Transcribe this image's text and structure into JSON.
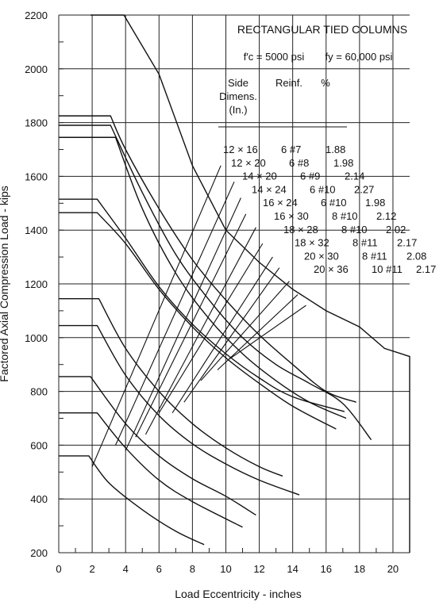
{
  "chart_data": {
    "type": "line",
    "title": "RECTANGULAR TIED COLUMNS",
    "material_fc": "f′c = 5000 psi",
    "material_fy": "fy = 60,000 psi",
    "xlabel": "Load Eccentricity - inches",
    "ylabel": "Factored Axial Compression Load - kips",
    "xlim": [
      0,
      21
    ],
    "ylim": [
      200,
      2200
    ],
    "x_ticks": [
      0,
      2,
      4,
      6,
      8,
      10,
      12,
      14,
      16,
      18,
      20
    ],
    "y_ticks": [
      200,
      400,
      600,
      800,
      1000,
      1200,
      1400,
      1600,
      1800,
      2000,
      2200
    ],
    "grid": true,
    "legend_headers": [
      "Side Dimens. (In.)",
      "Reinf.",
      "%"
    ],
    "legend_rows": [
      {
        "dims": "12 × 16",
        "reinf": "6 #7",
        "pct": "1.88"
      },
      {
        "dims": "12 × 20",
        "reinf": "6 #8",
        "pct": "1.98"
      },
      {
        "dims": "14 × 20",
        "reinf": "6 #9",
        "pct": "2.14"
      },
      {
        "dims": "14 × 24",
        "reinf": "6 #10",
        "pct": "2.27"
      },
      {
        "dims": "16 × 24",
        "reinf": "6 #10",
        "pct": "1.98"
      },
      {
        "dims": "16 × 30",
        "reinf": "8 #10",
        "pct": "2.12"
      },
      {
        "dims": "18 × 28",
        "reinf": "8 #10",
        "pct": "2.02"
      },
      {
        "dims": "18 × 32",
        "reinf": "8 #11",
        "pct": "2.17"
      },
      {
        "dims": "20 × 30",
        "reinf": "8 #11",
        "pct": "2.08"
      },
      {
        "dims": "20 × 36",
        "reinf": "10 #11",
        "pct": "2.17"
      }
    ],
    "series": [
      {
        "points": [
          [
            0,
            560
          ],
          [
            1.8,
            560
          ],
          [
            3,
            460
          ],
          [
            5,
            360
          ],
          [
            7,
            280
          ],
          [
            8.7,
            230
          ]
        ]
      },
      {
        "points": [
          [
            0,
            720
          ],
          [
            2.3,
            720
          ],
          [
            4,
            590
          ],
          [
            6,
            470
          ],
          [
            8,
            390
          ],
          [
            11,
            295
          ]
        ]
      },
      {
        "points": [
          [
            0,
            855
          ],
          [
            1.9,
            855
          ],
          [
            4,
            680
          ],
          [
            6,
            560
          ],
          [
            8,
            475
          ],
          [
            10,
            410
          ],
          [
            11.8,
            340
          ]
        ]
      },
      {
        "points": [
          [
            0,
            1045
          ],
          [
            2.3,
            1045
          ],
          [
            4,
            860
          ],
          [
            6,
            710
          ],
          [
            8,
            605
          ],
          [
            10,
            530
          ],
          [
            12,
            470
          ],
          [
            14.4,
            415
          ]
        ]
      },
      {
        "points": [
          [
            0,
            1145
          ],
          [
            2.4,
            1145
          ],
          [
            4,
            960
          ],
          [
            6,
            800
          ],
          [
            8,
            680
          ],
          [
            10,
            590
          ],
          [
            12,
            520
          ],
          [
            13.4,
            485
          ]
        ]
      },
      {
        "points": [
          [
            0,
            1465
          ],
          [
            2.3,
            1465
          ],
          [
            4,
            1350
          ],
          [
            6,
            1180
          ],
          [
            8,
            1040
          ],
          [
            10,
            925
          ],
          [
            12,
            830
          ],
          [
            14,
            745
          ],
          [
            16.6,
            660
          ]
        ]
      },
      {
        "points": [
          [
            0,
            1515
          ],
          [
            2.3,
            1515
          ],
          [
            4,
            1370
          ],
          [
            6,
            1190
          ],
          [
            8,
            1050
          ],
          [
            10,
            940
          ],
          [
            12,
            850
          ],
          [
            14,
            780
          ],
          [
            17.1,
            725
          ]
        ]
      },
      {
        "points": [
          [
            0,
            1745
          ],
          [
            3.4,
            1745
          ],
          [
            5,
            1480
          ],
          [
            7,
            1240
          ],
          [
            9,
            1070
          ],
          [
            11,
            940
          ],
          [
            13,
            840
          ],
          [
            15,
            760
          ],
          [
            17.2,
            700
          ]
        ]
      },
      {
        "points": [
          [
            0,
            1825
          ],
          [
            3.1,
            1825
          ],
          [
            4,
            1700
          ],
          [
            6,
            1480
          ],
          [
            8,
            1290
          ],
          [
            10,
            1140
          ],
          [
            12,
            1010
          ],
          [
            14,
            900
          ],
          [
            16,
            800
          ],
          [
            17.8,
            760
          ]
        ]
      },
      {
        "points": [
          [
            0,
            1790
          ],
          [
            3.1,
            1790
          ],
          [
            5,
            1540
          ],
          [
            7,
            1310
          ],
          [
            9,
            1140
          ],
          [
            11,
            1000
          ],
          [
            13,
            900
          ],
          [
            15,
            830
          ],
          [
            17,
            755
          ],
          [
            18.7,
            620
          ]
        ]
      }
    ],
    "envelope": [
      [
        3.9,
        2200
      ],
      [
        6,
        1980
      ],
      [
        8,
        1640
      ],
      [
        10,
        1400
      ],
      [
        12,
        1280
      ],
      [
        14,
        1180
      ],
      [
        16,
        1100
      ],
      [
        18,
        1040
      ],
      [
        19.5,
        960
      ],
      [
        21,
        930
      ],
      [
        21,
        200
      ]
    ],
    "leaders": [
      [
        [
          2,
          520
        ],
        [
          9.7,
          1640
        ]
      ],
      [
        [
          3.4,
          600
        ],
        [
          10.5,
          1580
        ]
      ],
      [
        [
          4,
          580
        ],
        [
          10.9,
          1520
        ]
      ],
      [
        [
          4.6,
          630
        ],
        [
          11.2,
          1460
        ]
      ],
      [
        [
          5.2,
          640
        ],
        [
          11.8,
          1410
        ]
      ],
      [
        [
          6,
          720
        ],
        [
          12.2,
          1350
        ]
      ],
      [
        [
          6.8,
          720
        ],
        [
          12.8,
          1300
        ]
      ],
      [
        [
          7.5,
          760
        ],
        [
          13.2,
          1260
        ]
      ],
      [
        [
          8.5,
          840
        ],
        [
          13.8,
          1210
        ]
      ],
      [
        [
          9.5,
          880
        ],
        [
          14.3,
          1160
        ]
      ],
      [
        [
          10.2,
          920
        ],
        [
          14.8,
          1120
        ]
      ]
    ]
  }
}
